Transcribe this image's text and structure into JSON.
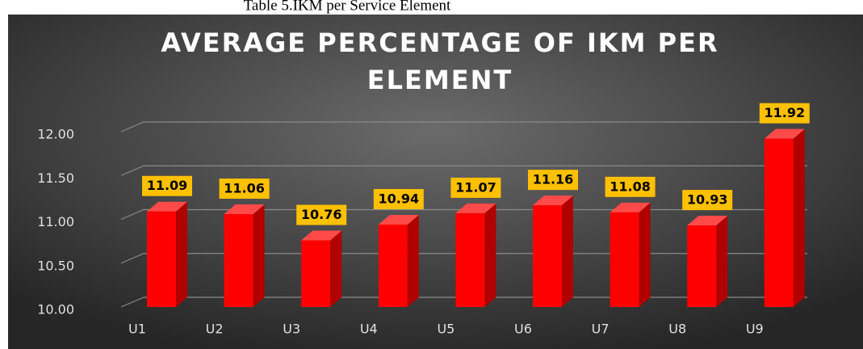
{
  "caption": "Table 5.IKM per Service Element",
  "chart_data": {
    "type": "bar3d",
    "title": "AVERAGE PERCENTAGE OF IKM PER ELEMENT",
    "categories": [
      "U1",
      "U2",
      "U3",
      "U4",
      "U5",
      "U6",
      "U7",
      "U8",
      "U9"
    ],
    "values": [
      11.09,
      11.06,
      10.76,
      10.94,
      11.07,
      11.16,
      11.08,
      10.93,
      11.92
    ],
    "color": "#ff0000",
    "label_color": "#ffc000",
    "ylim": [
      10,
      12
    ],
    "yticks": [
      {
        "value": 10,
        "label": "10.00"
      },
      {
        "value": 10.5,
        "label": "10.50"
      },
      {
        "value": 11,
        "label": "11.00"
      },
      {
        "value": 11.5,
        "label": "11.50"
      },
      {
        "value": 12,
        "label": "12.00"
      }
    ],
    "grid": true
  }
}
